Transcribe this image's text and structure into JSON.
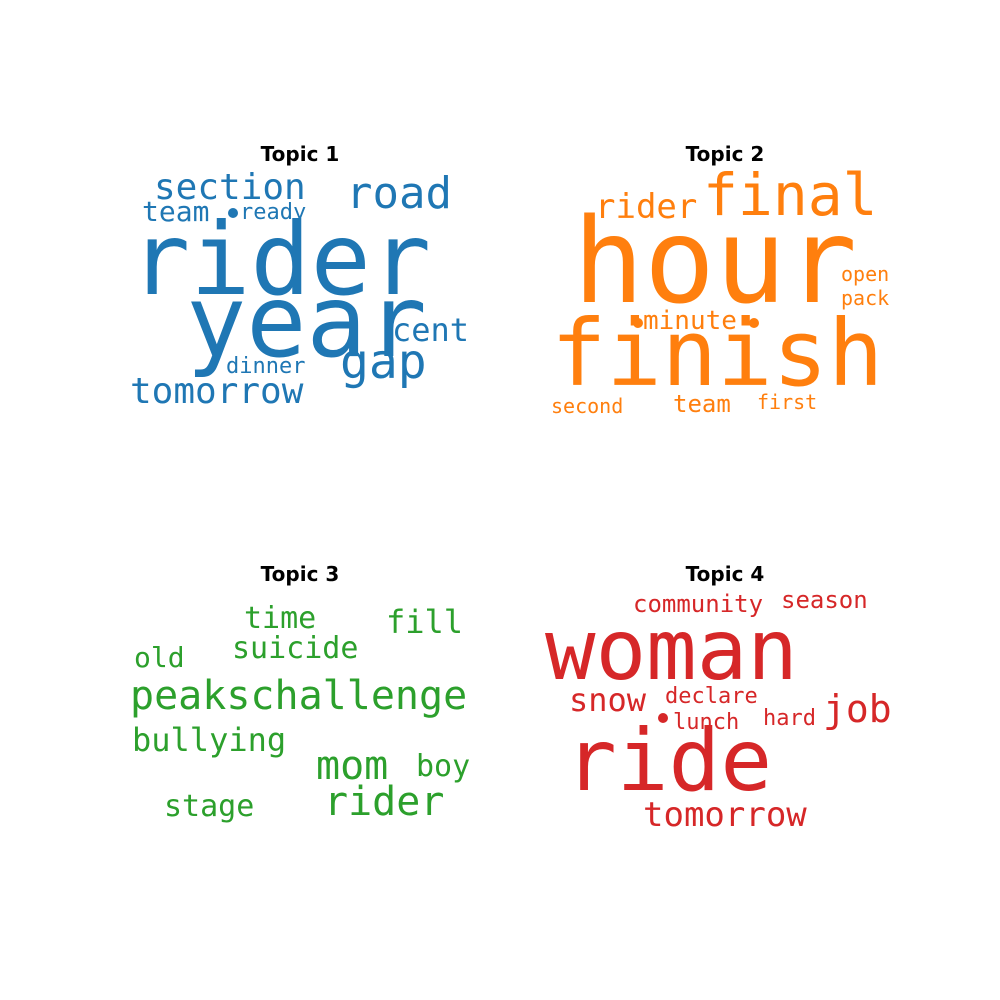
{
  "topics": [
    {
      "title": "Topic 1",
      "color": "#1f77b4",
      "words": [
        "rider",
        "year",
        "section",
        "road",
        "team",
        "ready",
        "cent",
        "gap",
        "dinner",
        "tomorrow"
      ]
    },
    {
      "title": "Topic 2",
      "color": "#ff7f0e",
      "words": [
        "hour",
        "final",
        "rider",
        "finish",
        "minute",
        "open",
        "pack",
        "second",
        "team",
        "first"
      ]
    },
    {
      "title": "Topic 3",
      "color": "#2ca02c",
      "words": [
        "time",
        "fill",
        "old",
        "suicide",
        "peakschallenge",
        "bullying",
        "mom",
        "boy",
        "rider",
        "stage"
      ]
    },
    {
      "title": "Topic 4",
      "color": "#d62728",
      "words": [
        "community",
        "season",
        "woman",
        "snow",
        "declare",
        "job",
        "lunch",
        "hard",
        "ride",
        "tomorrow"
      ]
    }
  ]
}
